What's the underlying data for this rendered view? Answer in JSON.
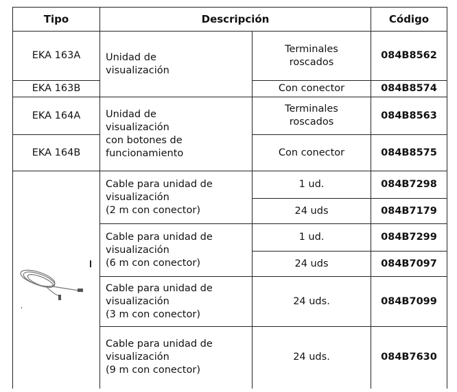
{
  "table": {
    "header": [
      "Tipo",
      "Descripción",
      "Código"
    ],
    "rows": [
      [
        "EKA 163A",
        "Unidad de\nvisualización",
        "Terminales\nroscados",
        "084B8562"
      ],
      [
        "EKA 163B",
        "Con conector",
        "084B8574"
      ],
      [
        "EKA 164A",
        "Unidad de\nvisualización\ncon botones de\nfuncionamiento",
        "Terminales\nroscados",
        "084B8563"
      ],
      [
        "EKA 164B",
        "Con conector",
        "084B8575"
      ],
      [
        "Cable para unidad de\nvisualización\n(2 m con conector)",
        "1 ud.",
        "084B7298"
      ],
      [
        "24 uds",
        "084B7179"
      ],
      [
        "Cable para unidad de\nvisualización\n (6 m con conector)",
        "1 ud.",
        "084B7299"
      ],
      [
        "24 uds",
        "084B7097"
      ],
      [
        "Cable para unidad de\nvisualización\n(3 m con conector)",
        "24 uds.",
        "084B7099"
      ],
      [
        "Cable para unidad de\nvisualización\n(9 m con conector)",
        "24 uds.",
        "084B7630"
      ]
    ]
  }
}
